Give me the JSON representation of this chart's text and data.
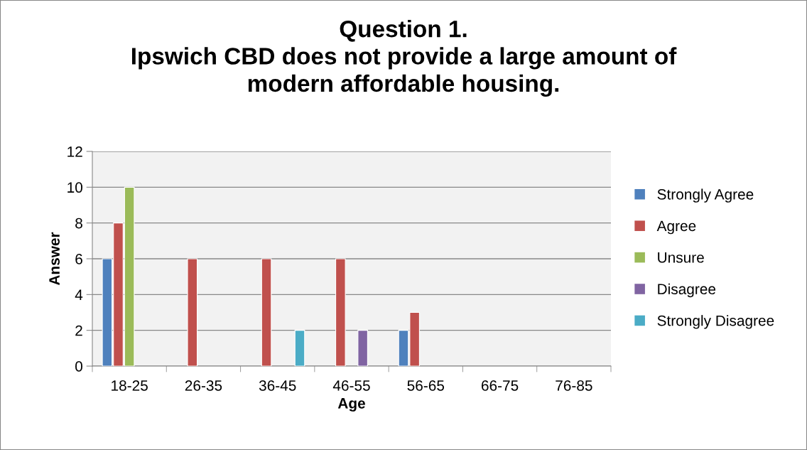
{
  "chart_data": {
    "type": "bar",
    "title": "Question 1.\nIpswich CBD does not provide a large amount of\nmodern affordable housing.",
    "xlabel": "Age",
    "ylabel": "Answer",
    "categories": [
      "18-25",
      "26-35",
      "36-45",
      "46-55",
      "56-65",
      "66-75",
      "76-85"
    ],
    "series": [
      {
        "name": "Strongly Agree",
        "color": "#4f81bd",
        "values": [
          6,
          null,
          null,
          null,
          2,
          null,
          null
        ]
      },
      {
        "name": "Agree",
        "color": "#c0504d",
        "values": [
          8,
          6,
          6,
          6,
          3,
          null,
          null
        ]
      },
      {
        "name": "Unsure",
        "color": "#9bbb59",
        "values": [
          10,
          null,
          null,
          null,
          null,
          null,
          null
        ]
      },
      {
        "name": "Disagree",
        "color": "#8064a2",
        "values": [
          null,
          null,
          null,
          2,
          null,
          null,
          null
        ]
      },
      {
        "name": "Strongly Disagree",
        "color": "#4bacc6",
        "values": [
          null,
          null,
          2,
          null,
          null,
          null,
          null
        ]
      }
    ],
    "ylim": [
      0,
      12
    ],
    "yticks": [
      0,
      2,
      4,
      6,
      8,
      10,
      12
    ],
    "grid": "y",
    "legend": "right"
  }
}
